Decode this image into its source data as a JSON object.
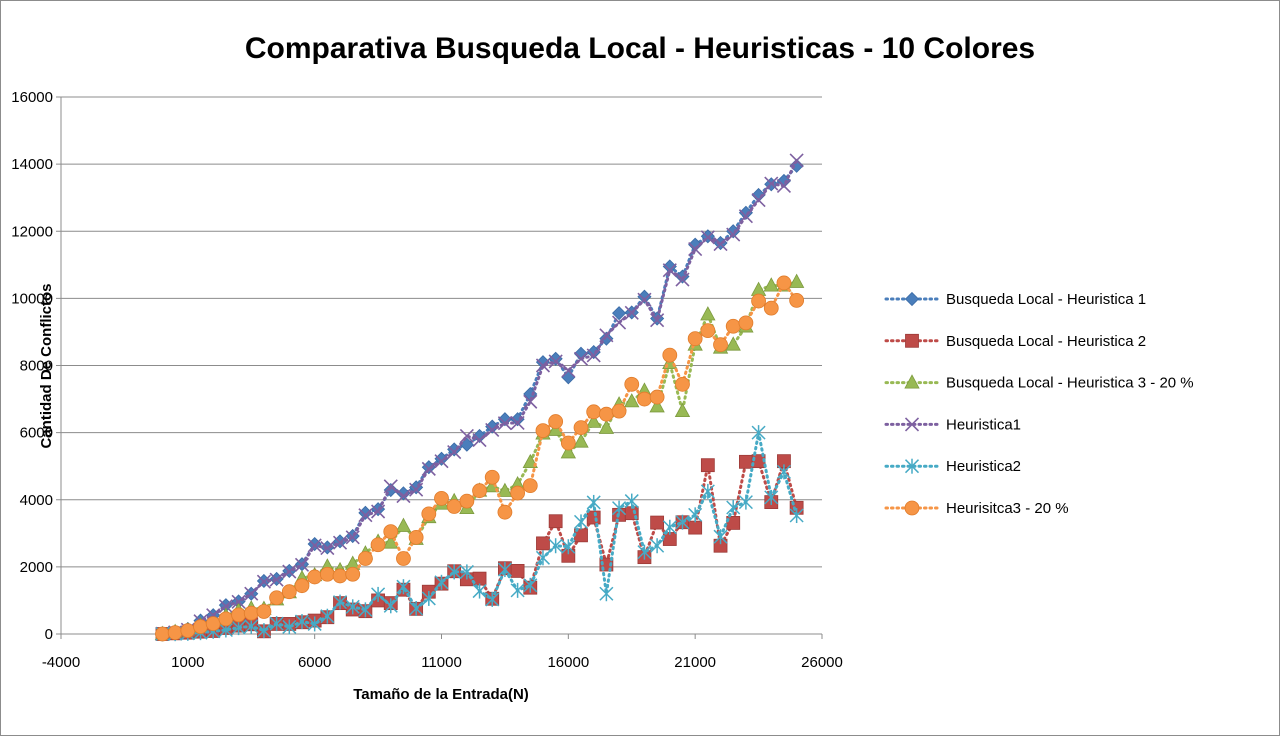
{
  "chart_data": {
    "type": "scatter",
    "title": "Comparativa Busqueda Local - Heuristicas - 10 Colores",
    "xlabel": "Tamaño de la Entrada(N)",
    "ylabel": "Cantidad De Conflictos",
    "xlim": [
      -4000,
      26000
    ],
    "ylim": [
      0,
      16000
    ],
    "xticks": [
      "-4000",
      "1000",
      "6000",
      "11000",
      "16000",
      "21000",
      "26000"
    ],
    "yticks": [
      "0",
      "2000",
      "4000",
      "6000",
      "8000",
      "10000",
      "12000",
      "14000",
      "16000"
    ],
    "grid": "horizontal",
    "legend_position": "right",
    "x": [
      0,
      500,
      1000,
      1500,
      2000,
      2500,
      3000,
      3500,
      4000,
      4500,
      5000,
      5500,
      6000,
      6500,
      7000,
      7500,
      8000,
      8500,
      9000,
      9500,
      10000,
      10500,
      11000,
      11500,
      12000,
      12500,
      13000,
      13500,
      14000,
      14500,
      15000,
      15500,
      16000,
      16500,
      17000,
      17500,
      18000,
      18500,
      19000,
      19500,
      20000,
      20500,
      21000,
      21500,
      22000,
      22500,
      23000,
      23500,
      24000,
      24500,
      25000
    ],
    "series": [
      {
        "name": "Busqueda Local - Heuristica 1",
        "color": "#4a7ebb",
        "marker": "diamond",
        "values": [
          10,
          60,
          150,
          400,
          560,
          860,
          970,
          1200,
          1580,
          1640,
          1880,
          2080,
          2680,
          2580,
          2760,
          2920,
          3610,
          3720,
          4290,
          4190,
          4370,
          4970,
          5220,
          5500,
          5640,
          5900,
          6180,
          6400,
          6400,
          7150,
          8100,
          8200,
          7650,
          8350,
          8400,
          8800,
          9560,
          9580,
          10050,
          9400,
          10950,
          10650,
          11600,
          11850,
          11650,
          12000,
          12550,
          13080,
          13400,
          13500,
          13950
        ]
      },
      {
        "name": "Busqueda Local - Heuristica 2",
        "color": "#be4b48",
        "marker": "square",
        "values": [
          0,
          20,
          40,
          70,
          90,
          180,
          250,
          290,
          80,
          300,
          300,
          350,
          400,
          500,
          920,
          730,
          680,
          1000,
          920,
          1320,
          750,
          1260,
          1500,
          1870,
          1630,
          1650,
          1050,
          1960,
          1880,
          1380,
          2700,
          3360,
          2330,
          2940,
          3470,
          2070,
          3550,
          3600,
          2290,
          3320,
          2830,
          3330,
          3170,
          5030,
          2630,
          3310,
          5130,
          5150,
          3930,
          5150,
          3760
        ]
      },
      {
        "name": "Busqueda Local - Heuristica 3 - 20 %",
        "color": "#98b954",
        "marker": "triangle",
        "values": [
          0,
          60,
          110,
          260,
          380,
          540,
          700,
          760,
          750,
          1030,
          1240,
          1660,
          1750,
          2010,
          1900,
          2090,
          2400,
          2750,
          2720,
          3220,
          2830,
          3480,
          3880,
          3960,
          3750,
          4270,
          4400,
          4260,
          4460,
          5120,
          5970,
          6080,
          5410,
          5730,
          6320,
          6140,
          6840,
          6930,
          7250,
          6780,
          8070,
          6640,
          8620,
          9520,
          8530,
          8620,
          9160,
          10250,
          10380,
          10380,
          10490
        ]
      },
      {
        "name": "Heuristica1",
        "color": "#7d60a0",
        "marker": "x",
        "values": [
          10,
          50,
          130,
          380,
          560,
          830,
          960,
          1200,
          1560,
          1620,
          1860,
          2060,
          2640,
          2560,
          2720,
          2880,
          3540,
          3650,
          4400,
          4110,
          4300,
          4920,
          5150,
          5420,
          5900,
          5780,
          6080,
          6280,
          6290,
          6920,
          8000,
          8120,
          7850,
          8200,
          8300,
          8900,
          9280,
          9570,
          9960,
          9350,
          10840,
          10560,
          11470,
          11820,
          11620,
          11900,
          12450,
          12930,
          13420,
          13350,
          14110
        ]
      },
      {
        "name": "Heuristica2",
        "color": "#46aac5",
        "marker": "asterisk",
        "values": [
          0,
          10,
          20,
          40,
          80,
          120,
          190,
          230,
          100,
          310,
          210,
          370,
          300,
          530,
          950,
          810,
          720,
          1180,
          840,
          1410,
          760,
          1060,
          1540,
          1850,
          1850,
          1280,
          1030,
          1920,
          1300,
          1450,
          2270,
          2630,
          2600,
          3340,
          3920,
          1200,
          3750,
          3960,
          2440,
          2630,
          3180,
          3330,
          3550,
          4250,
          2900,
          3770,
          3930,
          6000,
          4070,
          4830,
          3530
        ]
      },
      {
        "name": "Heurisitca3 - 20 %",
        "color": "#f69546",
        "marker": "circle",
        "values": [
          0,
          40,
          100,
          220,
          310,
          450,
          570,
          620,
          670,
          1080,
          1260,
          1440,
          1700,
          1780,
          1730,
          1780,
          2250,
          2660,
          3050,
          2250,
          2880,
          3580,
          4040,
          3800,
          3960,
          4270,
          4670,
          3630,
          4200,
          4420,
          6060,
          6330,
          5690,
          6150,
          6620,
          6550,
          6640,
          7440,
          7000,
          7060,
          8310,
          7440,
          8800,
          9040,
          8620,
          9170,
          9270,
          9920,
          9710,
          10460,
          9940
        ]
      }
    ]
  }
}
